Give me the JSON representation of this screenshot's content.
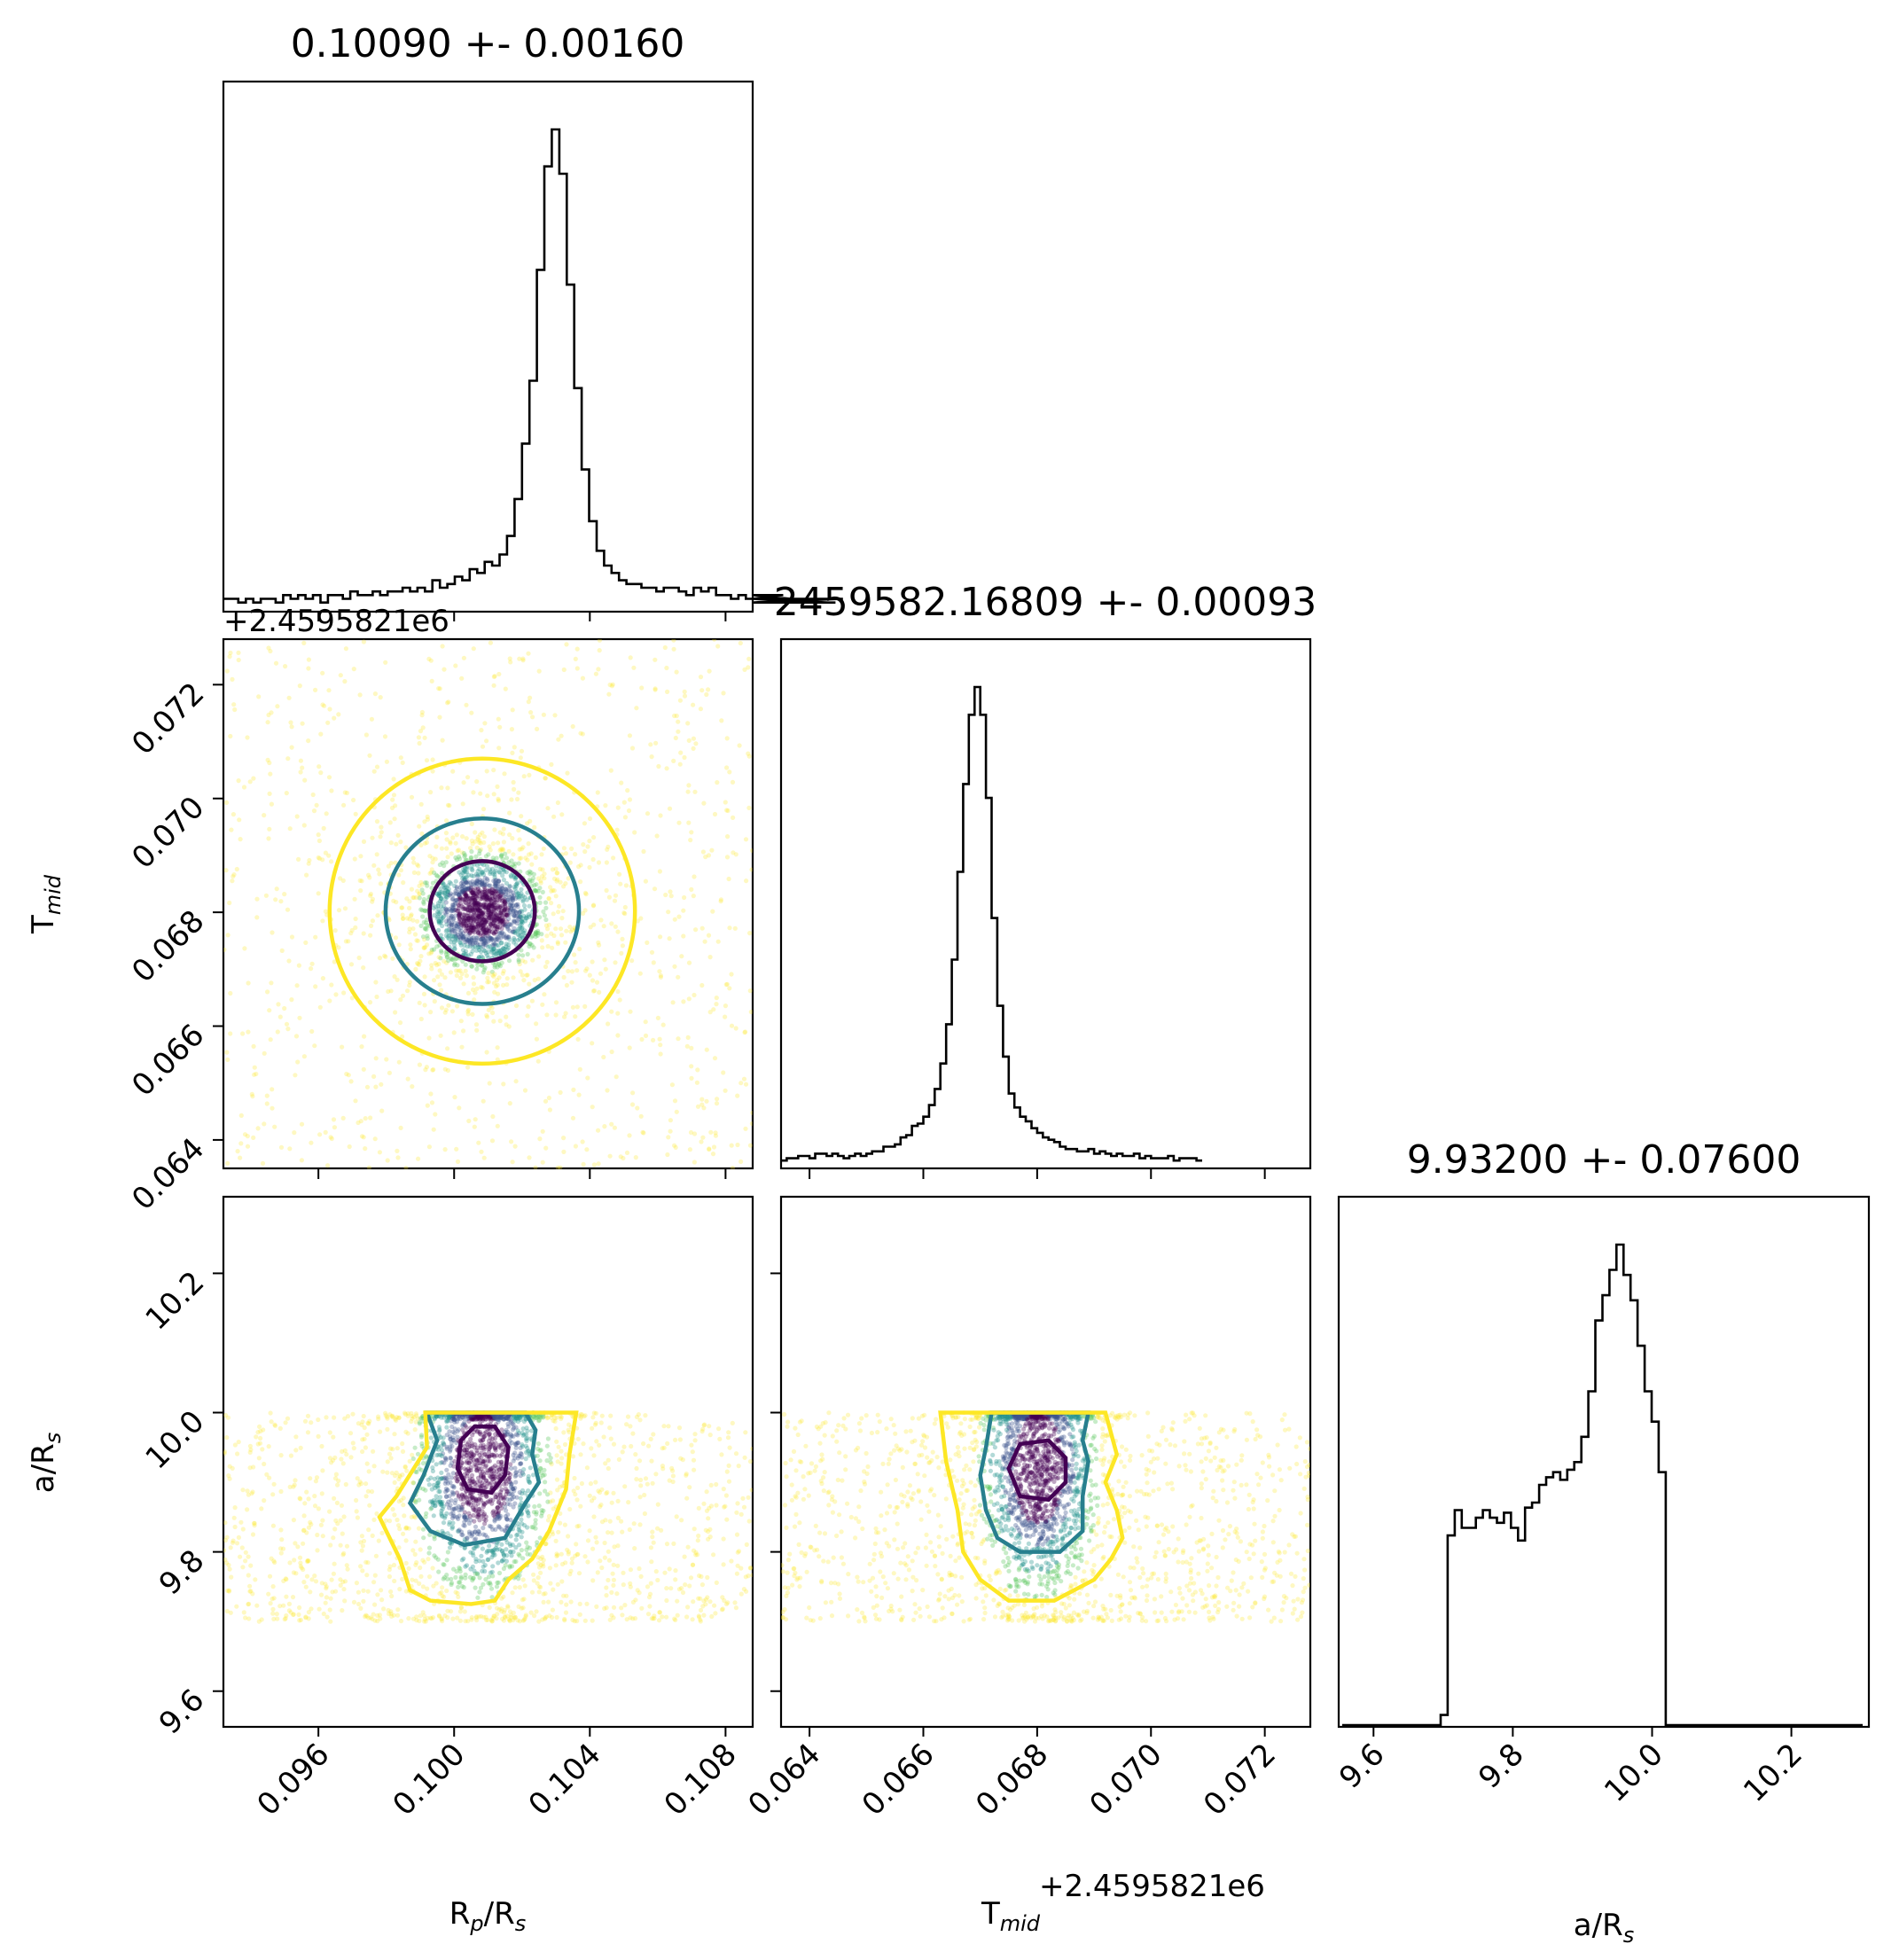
{
  "chart_data": {
    "type": "corner",
    "parameters": [
      {
        "key": "rprs",
        "label_main": "R",
        "label_sub": "p",
        "label_rest": "/R",
        "label_sub2": "s",
        "range": [
          0.0932,
          0.1088
        ],
        "ticks": [
          "0.096",
          "0.100",
          "0.104",
          "0.108"
        ],
        "tick_values": [
          0.096,
          0.1,
          0.104,
          0.108
        ]
      },
      {
        "key": "tmid",
        "label_main": "T",
        "label_sub": "mid",
        "label_rest": "",
        "label_sub2": "",
        "range": [
          0.0635,
          0.0728
        ],
        "ticks": [
          "0.064",
          "0.066",
          "0.068",
          "0.070",
          "0.072"
        ],
        "tick_values": [
          0.064,
          0.066,
          0.068,
          0.07,
          0.072
        ],
        "offset": "+2.4595821e6"
      },
      {
        "key": "ars",
        "label_main": "a/R",
        "label_sub": "s",
        "label_rest": "",
        "label_sub2": "",
        "range": [
          9.55,
          10.31
        ],
        "ticks": [
          "9.6",
          "9.8",
          "10.0",
          "10.2"
        ],
        "tick_values": [
          9.6,
          9.8,
          10.0,
          10.2
        ]
      }
    ],
    "titles": [
      "0.10090 +- 0.00160",
      "2459582.16809 +- 0.00093",
      "9.93200 +- 0.07600"
    ],
    "histograms": [
      {
        "param": "rprs",
        "bin_start": 0.0932,
        "bin_width": 0.00022,
        "counts": [
          3,
          3,
          2,
          3,
          2,
          3,
          3,
          2,
          4,
          3,
          4,
          3,
          4,
          2,
          4,
          4,
          3,
          5,
          4,
          4,
          5,
          4,
          5,
          5,
          6,
          5,
          6,
          5,
          8,
          6,
          7,
          9,
          8,
          11,
          10,
          13,
          12,
          15,
          20,
          30,
          45,
          62,
          92,
          120,
          130,
          118,
          88,
          60,
          38,
          24,
          16,
          12,
          10,
          8,
          7,
          7,
          6,
          6,
          5,
          6,
          6,
          5,
          4,
          6,
          5,
          6,
          4,
          4,
          3,
          4,
          3,
          3,
          3,
          3,
          3,
          4,
          3,
          3,
          2,
          3,
          3,
          2,
          2,
          3
        ]
      },
      {
        "param": "tmid",
        "bin_start": 0.0635,
        "bin_width": 0.0001,
        "counts": [
          3,
          4,
          4,
          5,
          5,
          4,
          6,
          6,
          5,
          6,
          5,
          4,
          5,
          6,
          5,
          6,
          7,
          7,
          9,
          9,
          10,
          13,
          14,
          18,
          19,
          22,
          27,
          34,
          45,
          62,
          90,
          128,
          166,
          196,
          208,
          196,
          160,
          108,
          70,
          48,
          32,
          26,
          22,
          20,
          17,
          15,
          13,
          12,
          11,
          9,
          8,
          8,
          7,
          7,
          8,
          6,
          7,
          6,
          5,
          6,
          5,
          5,
          6,
          4,
          5,
          4,
          4,
          4,
          5,
          3,
          4,
          4,
          4,
          3
        ]
      },
      {
        "param": "ars",
        "bin_start": 9.555,
        "bin_width": 0.0101,
        "counts": [
          0,
          0,
          0,
          0,
          0,
          0,
          0,
          0,
          0,
          0,
          0,
          0,
          0,
          0,
          4,
          75,
          85,
          78,
          78,
          82,
          85,
          82,
          80,
          84,
          78,
          73,
          86,
          88,
          95,
          98,
          100,
          97,
          101,
          104,
          114,
          132,
          160,
          170,
          180,
          190,
          178,
          168,
          150,
          132,
          120,
          100,
          0,
          0,
          0,
          0,
          0,
          0,
          0,
          0,
          0,
          0,
          0,
          0,
          0,
          0,
          0,
          0,
          0,
          0,
          0,
          0,
          0,
          0,
          0,
          0,
          0,
          0,
          0,
          0
        ]
      }
    ],
    "scatter_panels": [
      {
        "x": "rprs",
        "y": "tmid",
        "center": [
          0.10083,
          0.06802
        ],
        "spread": [
          0.0008,
          0.00045
        ],
        "contours": [
          {
            "level": "inner",
            "radius": [
              0.00155,
              0.00088
            ],
            "color": "#440154"
          },
          {
            "level": "middle",
            "radius": [
              0.00285,
              0.00163
            ],
            "color": "#277f8e"
          },
          {
            "level": "outer",
            "radius": [
              0.0045,
              0.00268
            ],
            "color": "#fde725"
          }
        ]
      },
      {
        "x": "rprs",
        "y": "ars",
        "center": [
          0.10083,
          9.92
        ],
        "ybounds": [
          9.7,
          10.0
        ],
        "contours": [
          {
            "level": "inner",
            "color": "#440154"
          },
          {
            "level": "middle",
            "color": "#277f8e"
          },
          {
            "level": "outer",
            "color": "#fde725"
          }
        ]
      },
      {
        "x": "tmid",
        "y": "ars",
        "center": [
          0.06802,
          9.92
        ],
        "ybounds": [
          9.7,
          10.0
        ],
        "contours": [
          {
            "level": "inner",
            "color": "#440154"
          },
          {
            "level": "middle",
            "color": "#277f8e"
          },
          {
            "level": "outer",
            "color": "#fde725"
          }
        ]
      }
    ],
    "colors": {
      "core": "#440154",
      "mid": "#3b528b",
      "teal": "#21918c",
      "green": "#5ec962",
      "outer": "#fde725"
    }
  }
}
